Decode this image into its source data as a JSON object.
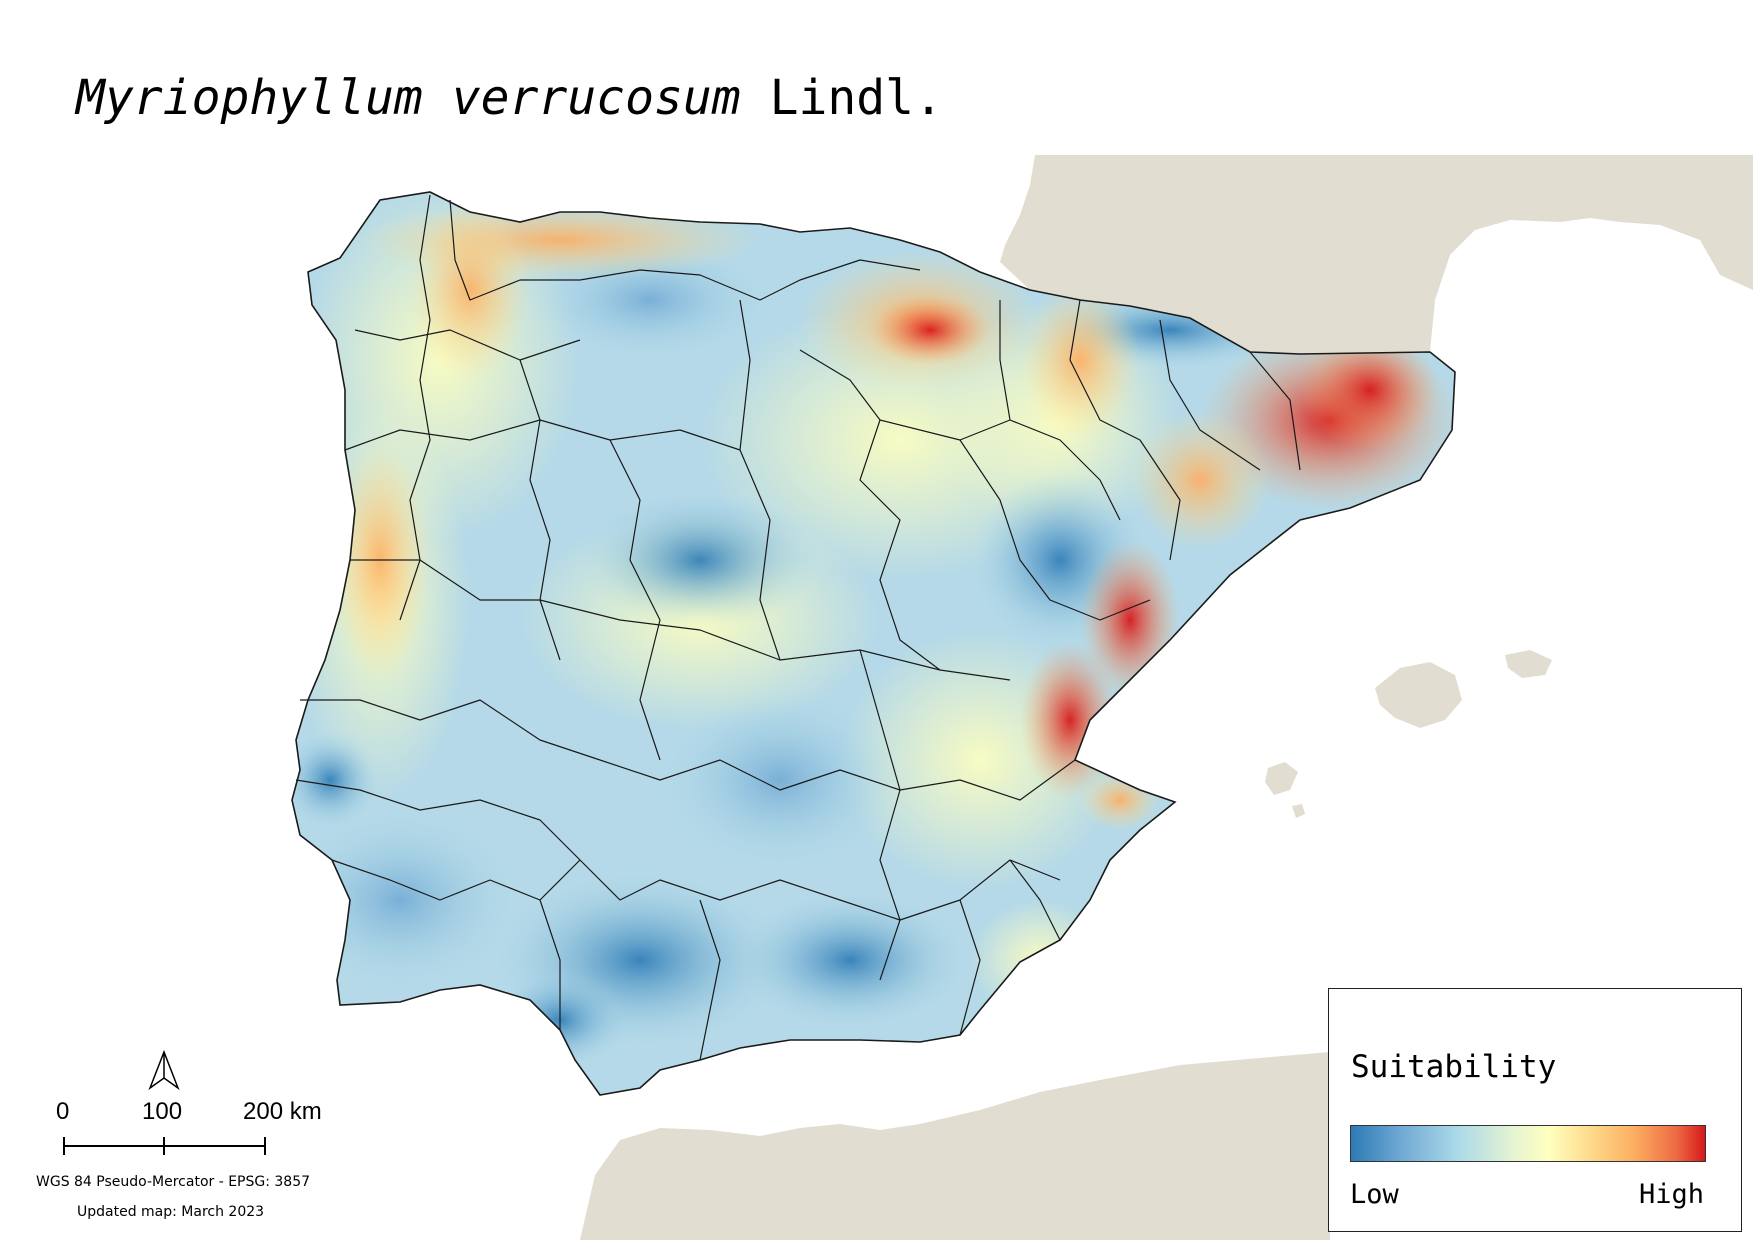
{
  "title": {
    "species": "Myriophyllum verrucosum",
    "author": "Lindl."
  },
  "legend": {
    "title": "Suitability",
    "low_label": "Low",
    "high_label": "High",
    "colors": [
      "#2c7bb6",
      "#abd9e9",
      "#ffffbf",
      "#fdae61",
      "#d7191c"
    ]
  },
  "scale_bar": {
    "labels": [
      "0",
      "100",
      "200 km"
    ]
  },
  "crs": "WGS 84 Pseudo-Mercator  - EPSG: 3857",
  "updated": "Updated map: March 2023",
  "colors": {
    "land_background": "#e1ddd0",
    "boundaries": "#1a1a1a",
    "sea": "#ffffff"
  },
  "icons": {
    "north_arrow": "north-arrow-icon"
  }
}
